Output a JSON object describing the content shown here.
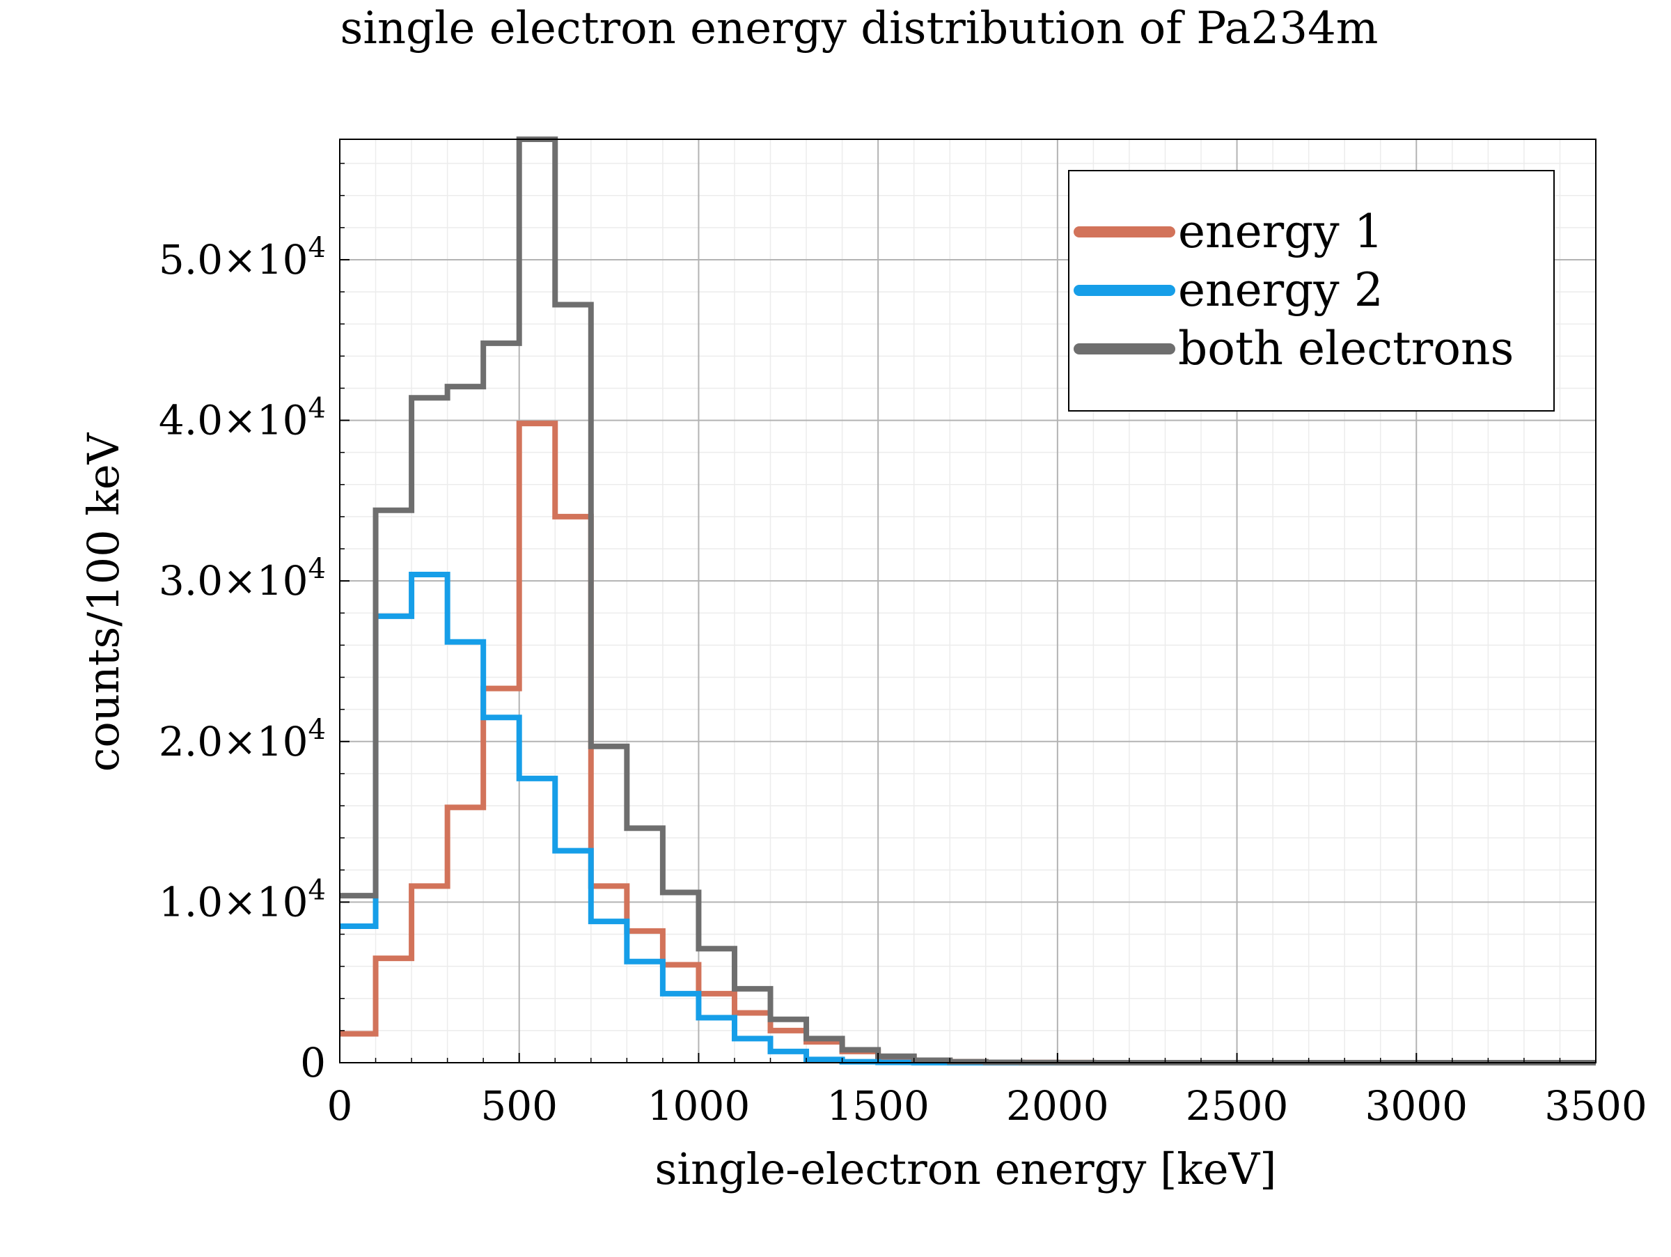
{
  "chart_data": {
    "type": "histogram-step",
    "title": "single electron energy distribution of Pa234m",
    "xlabel": "single-electron energy [keV]",
    "ylabel": "counts/100 keV",
    "xlim": [
      0,
      3500
    ],
    "ylim": [
      0,
      57500
    ],
    "bin_width": 100,
    "bin_edges": [
      0,
      100,
      200,
      300,
      400,
      500,
      600,
      700,
      800,
      900,
      1000,
      1100,
      1200,
      1300,
      1400,
      1500,
      1600,
      1700,
      1800,
      1900,
      2000,
      2100,
      2200,
      2300,
      2400,
      2500,
      2600,
      2700,
      2800,
      2900,
      3000,
      3100,
      3200,
      3300,
      3400,
      3500
    ],
    "x_ticks": [
      0,
      500,
      1000,
      1500,
      2000,
      2500,
      3000,
      3500
    ],
    "x_tick_labels": [
      "0",
      "500",
      "1000",
      "1500",
      "2000",
      "2500",
      "3000",
      "3500"
    ],
    "y_ticks": [
      0,
      10000,
      20000,
      30000,
      40000,
      50000
    ],
    "y_tick_labels": [
      {
        "mantissa": "0",
        "exp": ""
      },
      {
        "mantissa": "1.0×10",
        "exp": "4"
      },
      {
        "mantissa": "2.0×10",
        "exp": "4"
      },
      {
        "mantissa": "3.0×10",
        "exp": "4"
      },
      {
        "mantissa": "4.0×10",
        "exp": "4"
      },
      {
        "mantissa": "5.0×10",
        "exp": "4"
      }
    ],
    "grid": true,
    "legend_position": "top-right",
    "series": [
      {
        "name": "energy 1",
        "color": "#d2735a",
        "values": [
          1800,
          6500,
          11000,
          15900,
          23300,
          39800,
          34000,
          11000,
          8200,
          6100,
          4300,
          3100,
          2000,
          1300,
          700,
          350,
          150,
          60,
          20,
          10,
          5,
          0,
          0,
          0,
          0,
          0,
          0,
          0,
          0,
          0,
          0,
          0,
          0,
          0,
          0
        ]
      },
      {
        "name": "energy 2",
        "color": "#169ee8",
        "values": [
          8500,
          27800,
          30400,
          26200,
          21500,
          17700,
          13200,
          8800,
          6300,
          4300,
          2800,
          1500,
          700,
          200,
          60,
          20,
          5,
          0,
          0,
          0,
          0,
          0,
          0,
          0,
          0,
          0,
          0,
          0,
          0,
          0,
          0,
          0,
          0,
          0,
          0
        ]
      },
      {
        "name": "both electrons",
        "color": "#6e6e6e",
        "values": [
          10400,
          34400,
          41400,
          42100,
          44800,
          57500,
          47200,
          19700,
          14600,
          10600,
          7100,
          4600,
          2700,
          1500,
          800,
          400,
          150,
          60,
          20,
          10,
          5,
          0,
          0,
          0,
          0,
          0,
          0,
          0,
          0,
          0,
          0,
          0,
          0,
          0,
          0
        ]
      }
    ]
  }
}
